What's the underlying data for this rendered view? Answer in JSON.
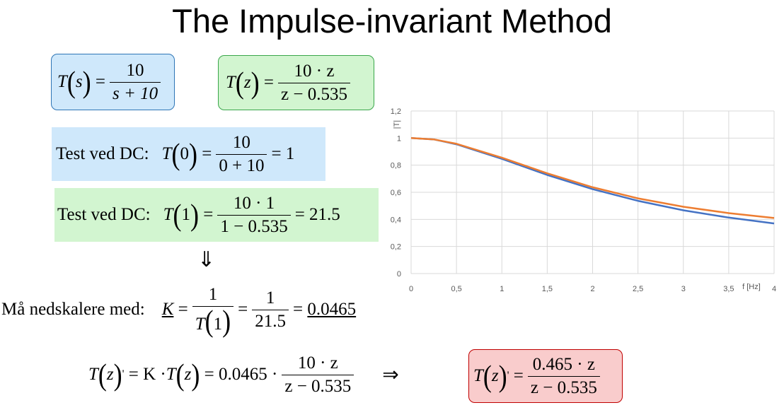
{
  "title": "The Impulse-invariant Method",
  "eq_ts": {
    "lhs": "T",
    "arg": "s",
    "num": "10",
    "den": "s + 10"
  },
  "eq_tz": {
    "lhs": "T",
    "arg": "z",
    "num": "10 · z",
    "den": "z − 0.535"
  },
  "test1": {
    "label": "Test ved DC:",
    "lhs": "T",
    "arg": "0",
    "num": "10",
    "den": "0 + 10",
    "result": "= 1"
  },
  "test2": {
    "label": "Test ved DC:",
    "lhs": "T",
    "arg": "1",
    "num": "10 · 1",
    "den": "1 − 0.535",
    "result": "= 21.5"
  },
  "arrow_down": "⇓",
  "scale": {
    "label": "Må nedskalere med:",
    "k": "K",
    "num1": "1",
    "den1_f": "T",
    "den1_arg": "1",
    "num2": "1",
    "den2": "21.5",
    "result": "0.0465"
  },
  "final": {
    "lhs": "T",
    "arg": "z",
    "prime": "'",
    "mid": "= K · ",
    "mid_t": "T",
    "mid_arg": "z",
    "coef": "= 0.0465 ·",
    "num": "10 · z",
    "den": "z − 0.535",
    "implies": "⇒"
  },
  "result_box": {
    "lhs": "T",
    "arg": "z",
    "prime": "'",
    "num": "0.465 · z",
    "den": "z − 0.535"
  },
  "colors": {
    "blue_fill": "#cfe8fb",
    "blue_border": "#2e75b6",
    "green_fill": "#d2f5d0",
    "green_border": "#3aa64b",
    "red_fill": "#f9cccc",
    "red_border": "#c00000",
    "series_blue": "#4472c4",
    "series_orange": "#ed7d31"
  },
  "chart_data": {
    "type": "line",
    "xlabel": "f [Hz]",
    "ylabel": "|T|",
    "xlim": [
      0,
      4
    ],
    "ylim": [
      0,
      1.2
    ],
    "x_ticks": [
      "0",
      "0,5",
      "1",
      "1,5",
      "2",
      "2,5",
      "3",
      "3,5",
      "4"
    ],
    "y_ticks": [
      "0",
      "0,2",
      "0,4",
      "0,6",
      "0,8",
      "1",
      "1,2"
    ],
    "grid": true,
    "series": [
      {
        "color": "#4472c4",
        "x": [
          0,
          0.25,
          0.5,
          1,
          1.5,
          2,
          2.5,
          3,
          3.5,
          4
        ],
        "y": [
          1.0,
          0.99,
          0.954,
          0.847,
          0.728,
          0.623,
          0.537,
          0.467,
          0.413,
          0.37
        ]
      },
      {
        "color": "#ed7d31",
        "x": [
          0,
          0.25,
          0.5,
          1,
          1.5,
          2,
          2.5,
          3,
          3.5,
          4
        ],
        "y": [
          1.0,
          0.99,
          0.958,
          0.855,
          0.74,
          0.637,
          0.555,
          0.493,
          0.446,
          0.41
        ]
      }
    ]
  }
}
